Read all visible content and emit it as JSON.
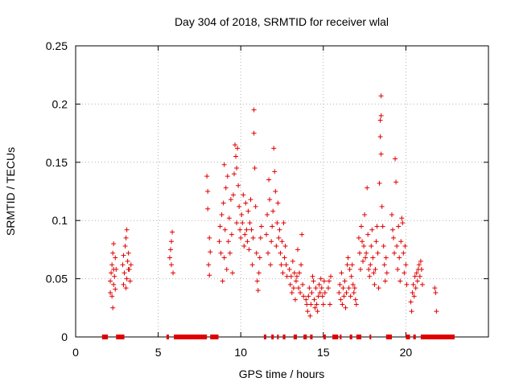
{
  "chart_data": {
    "type": "scatter",
    "title": "Day 304 of 2018, SRMTID for receiver wlal",
    "xlabel": "GPS time / hours",
    "ylabel": "SRMTID / TECUs",
    "xlim": [
      0,
      25
    ],
    "ylim": [
      0,
      0.25
    ],
    "grid": true,
    "x_ticks": [
      {
        "value": 0,
        "label": "0"
      },
      {
        "value": 5,
        "label": "5"
      },
      {
        "value": 10,
        "label": "10"
      },
      {
        "value": 15,
        "label": "15"
      },
      {
        "value": 20,
        "label": "20"
      }
    ],
    "y_ticks": [
      {
        "value": 0,
        "label": "0"
      },
      {
        "value": 0.05,
        "label": "0.05"
      },
      {
        "value": 0.1,
        "label": "0.1"
      },
      {
        "value": 0.15,
        "label": "0.15"
      },
      {
        "value": 0.2,
        "label": "0.2"
      },
      {
        "value": 0.25,
        "label": "0.25"
      }
    ],
    "marker": "+",
    "color": "#e00000",
    "series": [
      {
        "name": "SRMTID",
        "points": [
          [
            2.1,
            0.048
          ],
          [
            2.15,
            0.055
          ],
          [
            2.2,
            0.062
          ],
          [
            2.2,
            0.035
          ],
          [
            2.25,
            0.072
          ],
          [
            2.25,
            0.025
          ],
          [
            2.3,
            0.08
          ],
          [
            2.3,
            0.045
          ],
          [
            2.35,
            0.052
          ],
          [
            2.4,
            0.041
          ],
          [
            2.4,
            0.068
          ],
          [
            2.45,
            0.058
          ],
          [
            2.1,
            0.038
          ],
          [
            2.3,
            0.058
          ],
          [
            2.85,
            0.062
          ],
          [
            2.9,
            0.07
          ],
          [
            2.95,
            0.055
          ],
          [
            3.0,
            0.078
          ],
          [
            3.05,
            0.085
          ],
          [
            3.05,
            0.042
          ],
          [
            3.1,
            0.092
          ],
          [
            3.1,
            0.05
          ],
          [
            3.15,
            0.065
          ],
          [
            3.2,
            0.072
          ],
          [
            3.25,
            0.058
          ],
          [
            3.3,
            0.048
          ],
          [
            3.35,
            0.062
          ],
          [
            2.9,
            0.045
          ],
          [
            3.2,
            0.058
          ],
          [
            5.7,
            0.068
          ],
          [
            5.75,
            0.075
          ],
          [
            5.8,
            0.082
          ],
          [
            5.8,
            0.062
          ],
          [
            5.85,
            0.09
          ],
          [
            5.9,
            0.055
          ],
          [
            7.95,
            0.138
          ],
          [
            8.0,
            0.11
          ],
          [
            8.0,
            0.125
          ],
          [
            8.05,
            0.062
          ],
          [
            8.1,
            0.085
          ],
          [
            8.1,
            0.053
          ],
          [
            8.15,
            0.073
          ],
          [
            8.7,
            0.082
          ],
          [
            8.75,
            0.095
          ],
          [
            8.8,
            0.072
          ],
          [
            8.85,
            0.105
          ],
          [
            8.9,
            0.048
          ],
          [
            8.95,
            0.115
          ],
          [
            9.0,
            0.068
          ],
          [
            9.0,
            0.148
          ],
          [
            9.05,
            0.092
          ],
          [
            9.1,
            0.128
          ],
          [
            9.15,
            0.058
          ],
          [
            9.2,
            0.138
          ],
          [
            9.25,
            0.082
          ],
          [
            9.3,
            0.102
          ],
          [
            9.35,
            0.072
          ],
          [
            9.4,
            0.118
          ],
          [
            9.45,
            0.088
          ],
          [
            9.5,
            0.055
          ],
          [
            9.55,
            0.122
          ],
          [
            9.6,
            0.14
          ],
          [
            9.65,
            0.165
          ],
          [
            9.7,
            0.155
          ],
          [
            9.75,
            0.145
          ],
          [
            9.75,
            0.098
          ],
          [
            9.8,
            0.162
          ],
          [
            9.85,
            0.13
          ],
          [
            9.9,
            0.112
          ],
          [
            9.95,
            0.092
          ],
          [
            10.0,
            0.085
          ],
          [
            10.05,
            0.105
          ],
          [
            10.1,
            0.098
          ],
          [
            10.15,
            0.122
          ],
          [
            10.2,
            0.078
          ],
          [
            10.25,
            0.088
          ],
          [
            10.3,
            0.115
          ],
          [
            10.35,
            0.092
          ],
          [
            10.4,
            0.082
          ],
          [
            10.45,
            0.108
          ],
          [
            10.5,
            0.075
          ],
          [
            10.55,
            0.098
          ],
          [
            10.6,
            0.118
          ],
          [
            10.65,
            0.092
          ],
          [
            10.7,
            0.062
          ],
          [
            10.75,
            0.085
          ],
          [
            10.8,
            0.195
          ],
          [
            10.8,
            0.175
          ],
          [
            10.85,
            0.145
          ],
          [
            10.9,
            0.112
          ],
          [
            10.95,
            0.072
          ],
          [
            11.0,
            0.048
          ],
          [
            11.05,
            0.04
          ],
          [
            11.1,
            0.055
          ],
          [
            11.15,
            0.068
          ],
          [
            11.2,
            0.085
          ],
          [
            11.25,
            0.095
          ],
          [
            11.55,
            0.088
          ],
          [
            11.6,
            0.105
          ],
          [
            11.65,
            0.072
          ],
          [
            11.7,
            0.135
          ],
          [
            11.75,
            0.118
          ],
          [
            11.8,
            0.062
          ],
          [
            11.85,
            0.082
          ],
          [
            11.9,
            0.095
          ],
          [
            11.95,
            0.108
          ],
          [
            12.0,
            0.162
          ],
          [
            12.05,
            0.142
          ],
          [
            12.1,
            0.125
          ],
          [
            12.15,
            0.078
          ],
          [
            12.2,
            0.098
          ],
          [
            12.25,
            0.115
          ],
          [
            12.3,
            0.085
          ],
          [
            12.35,
            0.092
          ],
          [
            12.4,
            0.072
          ],
          [
            12.45,
            0.062
          ],
          [
            12.5,
            0.082
          ],
          [
            12.55,
            0.055
          ],
          [
            12.6,
            0.098
          ],
          [
            12.65,
            0.068
          ],
          [
            12.7,
            0.078
          ],
          [
            12.75,
            0.062
          ],
          [
            12.8,
            0.052
          ],
          [
            12.95,
            0.058
          ],
          [
            13.0,
            0.045
          ],
          [
            13.05,
            0.052
          ],
          [
            13.1,
            0.038
          ],
          [
            13.15,
            0.065
          ],
          [
            13.2,
            0.042
          ],
          [
            13.25,
            0.055
          ],
          [
            13.3,
            0.032
          ],
          [
            13.35,
            0.048
          ],
          [
            13.4,
            0.052
          ],
          [
            13.45,
            0.075
          ],
          [
            13.5,
            0.042
          ],
          [
            13.55,
            0.055
          ],
          [
            13.6,
            0.038
          ],
          [
            13.65,
            0.062
          ],
          [
            13.7,
            0.088
          ],
          [
            13.75,
            0.045
          ],
          [
            13.8,
            0.035
          ],
          [
            13.95,
            0.032
          ],
          [
            14.0,
            0.028
          ],
          [
            14.05,
            0.022
          ],
          [
            14.1,
            0.035
          ],
          [
            14.15,
            0.042
          ],
          [
            14.2,
            0.018
          ],
          [
            14.25,
            0.028
          ],
          [
            14.3,
            0.038
          ],
          [
            14.35,
            0.052
          ],
          [
            14.4,
            0.048
          ],
          [
            14.45,
            0.032
          ],
          [
            14.5,
            0.025
          ],
          [
            14.55,
            0.042
          ],
          [
            14.6,
            0.028
          ],
          [
            14.65,
            0.022
          ],
          [
            14.7,
            0.035
          ],
          [
            14.75,
            0.045
          ],
          [
            14.8,
            0.038
          ],
          [
            14.85,
            0.05
          ],
          [
            14.9,
            0.042
          ],
          [
            14.95,
            0.035
          ],
          [
            15.0,
            0.028
          ],
          [
            15.05,
            0.048
          ],
          [
            15.1,
            0.038
          ],
          [
            15.3,
            0.042
          ],
          [
            15.35,
            0.048
          ],
          [
            15.4,
            0.028
          ],
          [
            15.45,
            0.052
          ],
          [
            15.95,
            0.038
          ],
          [
            16.0,
            0.045
          ],
          [
            16.05,
            0.032
          ],
          [
            16.1,
            0.055
          ],
          [
            16.15,
            0.028
          ],
          [
            16.2,
            0.042
          ],
          [
            16.25,
            0.035
          ],
          [
            16.3,
            0.048
          ],
          [
            16.35,
            0.025
          ],
          [
            16.4,
            0.038
          ],
          [
            16.45,
            0.062
          ],
          [
            16.5,
            0.068
          ],
          [
            16.55,
            0.042
          ],
          [
            16.6,
            0.058
          ],
          [
            16.65,
            0.035
          ],
          [
            16.7,
            0.052
          ],
          [
            16.75,
            0.062
          ],
          [
            16.8,
            0.045
          ],
          [
            16.85,
            0.038
          ],
          [
            16.9,
            0.042
          ],
          [
            16.95,
            0.032
          ],
          [
            17.0,
            0.028
          ],
          [
            17.15,
            0.085
          ],
          [
            17.2,
            0.072
          ],
          [
            17.25,
            0.058
          ],
          [
            17.3,
            0.095
          ],
          [
            17.35,
            0.082
          ],
          [
            17.4,
            0.065
          ],
          [
            17.45,
            0.078
          ],
          [
            17.5,
            0.105
          ],
          [
            17.55,
            0.068
          ],
          [
            17.6,
            0.072
          ],
          [
            17.65,
            0.128
          ],
          [
            17.7,
            0.088
          ],
          [
            17.75,
            0.058
          ],
          [
            17.8,
            0.052
          ],
          [
            17.85,
            0.062
          ],
          [
            17.9,
            0.078
          ],
          [
            17.95,
            0.092
          ],
          [
            18.0,
            0.068
          ],
          [
            18.05,
            0.055
          ],
          [
            18.1,
            0.045
          ],
          [
            18.15,
            0.058
          ],
          [
            18.2,
            0.082
          ],
          [
            18.25,
            0.095
          ],
          [
            18.3,
            0.072
          ],
          [
            18.35,
            0.042
          ],
          [
            18.4,
            0.132
          ],
          [
            18.45,
            0.186
          ],
          [
            18.45,
            0.172
          ],
          [
            18.5,
            0.207
          ],
          [
            18.5,
            0.19
          ],
          [
            18.5,
            0.157
          ],
          [
            18.55,
            0.112
          ],
          [
            18.6,
            0.095
          ],
          [
            18.65,
            0.078
          ],
          [
            18.7,
            0.062
          ],
          [
            18.75,
            0.048
          ],
          [
            18.8,
            0.068
          ],
          [
            18.85,
            0.055
          ],
          [
            19.15,
            0.105
          ],
          [
            19.2,
            0.092
          ],
          [
            19.25,
            0.085
          ],
          [
            19.3,
            0.072
          ],
          [
            19.35,
            0.153
          ],
          [
            19.4,
            0.133
          ],
          [
            19.45,
            0.078
          ],
          [
            19.5,
            0.058
          ],
          [
            19.55,
            0.095
          ],
          [
            19.6,
            0.068
          ],
          [
            19.65,
            0.048
          ],
          [
            19.7,
            0.082
          ],
          [
            19.75,
            0.102
          ],
          [
            19.8,
            0.098
          ],
          [
            19.85,
            0.072
          ],
          [
            19.9,
            0.055
          ],
          [
            19.95,
            0.078
          ],
          [
            20.0,
            0.062
          ],
          [
            20.05,
            0.045
          ],
          [
            20.3,
            0.03
          ],
          [
            20.35,
            0.022
          ],
          [
            20.4,
            0.038
          ],
          [
            20.45,
            0.045
          ],
          [
            20.5,
            0.035
          ],
          [
            20.55,
            0.052
          ],
          [
            20.6,
            0.042
          ],
          [
            20.65,
            0.055
          ],
          [
            20.7,
            0.048
          ],
          [
            20.75,
            0.058
          ],
          [
            20.8,
            0.062
          ],
          [
            20.85,
            0.052
          ],
          [
            20.9,
            0.065
          ],
          [
            20.95,
            0.058
          ],
          [
            21.0,
            0.045
          ],
          [
            21.75,
            0.042
          ],
          [
            21.8,
            0.038
          ],
          [
            21.85,
            0.022
          ]
        ]
      },
      {
        "name": "Zero values",
        "x_ranges": [
          [
            1.6,
            1.95
          ],
          [
            2.45,
            2.95
          ],
          [
            5.5,
            5.65
          ],
          [
            5.95,
            7.95
          ],
          [
            8.15,
            8.65
          ],
          [
            11.4,
            11.55
          ],
          [
            11.85,
            12.0
          ],
          [
            12.2,
            12.3
          ],
          [
            12.55,
            12.7
          ],
          [
            13.2,
            13.4
          ],
          [
            13.8,
            14.0
          ],
          [
            14.2,
            14.35
          ],
          [
            15.0,
            15.15
          ],
          [
            15.55,
            15.9
          ],
          [
            16.0,
            16.1
          ],
          [
            16.6,
            16.75
          ],
          [
            17.0,
            17.3
          ],
          [
            17.8,
            17.9
          ],
          [
            18.8,
            19.15
          ],
          [
            20.0,
            20.25
          ],
          [
            20.45,
            20.6
          ],
          [
            20.9,
            22.95
          ]
        ]
      }
    ]
  }
}
